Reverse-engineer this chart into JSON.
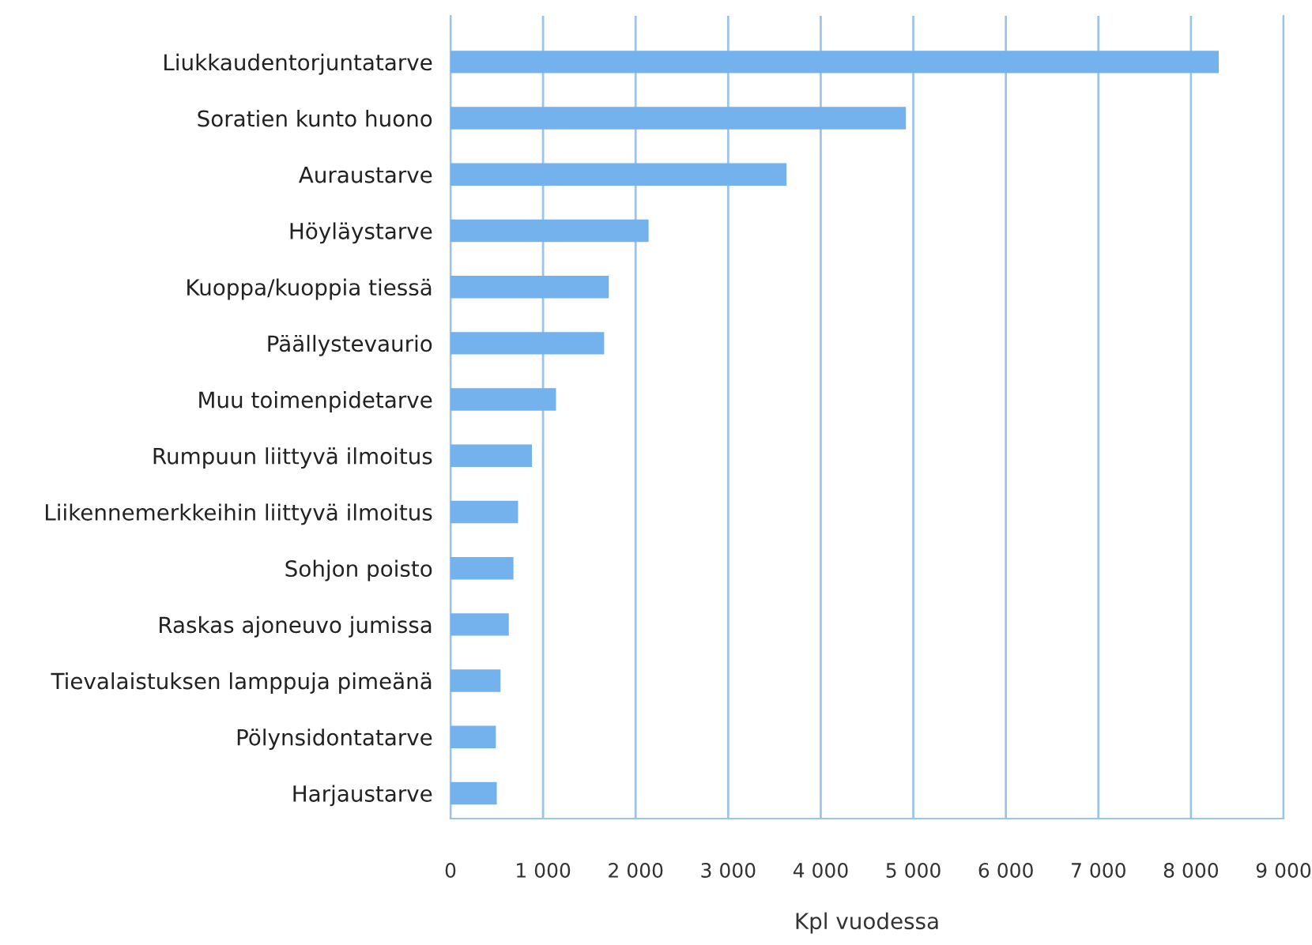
{
  "chart_data": {
    "type": "bar",
    "orientation": "horizontal",
    "xlabel": "Kpl vuodessa",
    "categories": [
      "Liukkaudentorjuntatarve",
      "Soratien kunto huono",
      "Auraustarve",
      "Höyläystarve",
      "Kuoppa/kuoppia tiessä",
      "Päällystevaurio",
      "Muu toimenpidetarve",
      "Rumpuun liittyvä ilmoitus",
      "Liikennemerkkeihin liittyvä ilmoitus",
      "Sohjon poisto",
      "Raskas ajoneuvo jumissa",
      "Tievalaistuksen lamppuja pimeänä",
      "Pölynsidontatarve",
      "Harjaustarve"
    ],
    "values": [
      8300,
      4920,
      3630,
      2140,
      1710,
      1660,
      1140,
      880,
      730,
      680,
      630,
      540,
      490,
      500
    ],
    "color": "#74b2ee",
    "xlim": [
      0,
      9000
    ],
    "xticks": [
      0,
      {
        "value": 1000,
        "label": "1 000"
      },
      {
        "value": 2000,
        "label": "2 000"
      },
      {
        "value": 3000,
        "label": "3 000"
      },
      {
        "value": 4000,
        "label": "4 000"
      },
      {
        "value": 5000,
        "label": "5 000"
      },
      {
        "value": 6000,
        "label": "6 000"
      },
      {
        "value": 7000,
        "label": "7 000"
      },
      {
        "value": 8000,
        "label": "8 000"
      },
      {
        "value": 9000,
        "label": "9 000"
      }
    ],
    "grid": "x"
  }
}
